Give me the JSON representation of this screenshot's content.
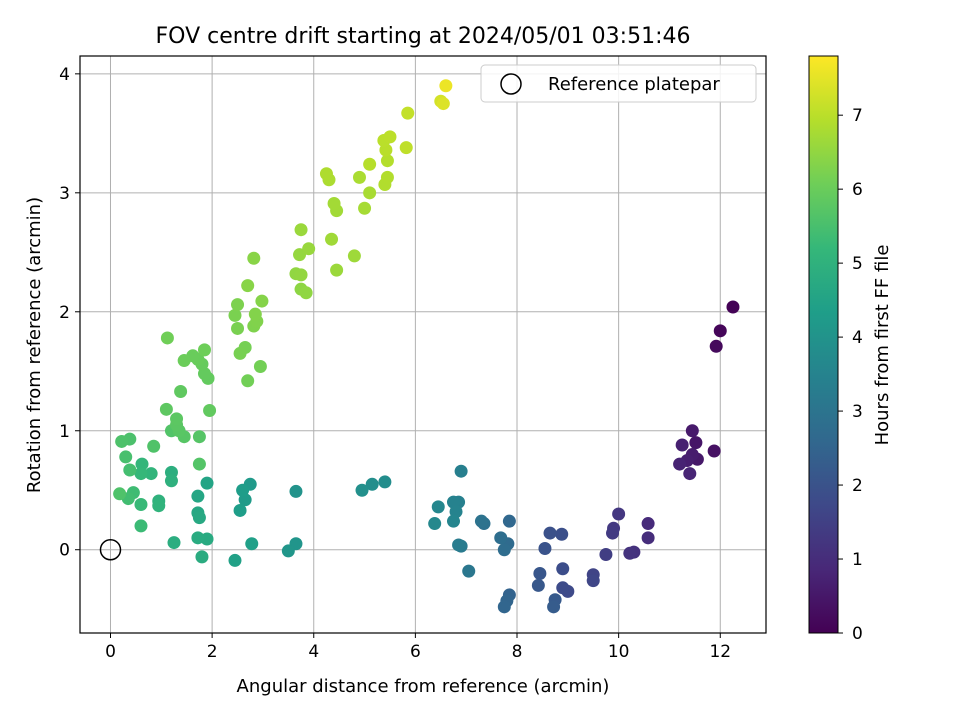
{
  "chart_data": {
    "type": "scatter",
    "title": "FOV centre drift starting at 2024/05/01 03:51:46",
    "xlabel": "Angular distance from reference (arcmin)",
    "ylabel": "Rotation from reference (arcmin)",
    "xlim": [
      -0.6,
      12.9
    ],
    "ylim": [
      -0.7,
      4.15
    ],
    "xticks": [
      0,
      2,
      4,
      6,
      8,
      10,
      12
    ],
    "xtick_labels": [
      "0",
      "2",
      "4",
      "6",
      "8",
      "10",
      "12"
    ],
    "yticks": [
      0,
      1,
      2,
      3,
      4
    ],
    "ytick_labels": [
      "0",
      "1",
      "2",
      "3",
      "4"
    ],
    "grid": true,
    "legend": {
      "placement": "top-right",
      "entries": [
        "Reference platepar"
      ]
    },
    "colorbar": {
      "label": "Hours from first FF file",
      "range": [
        0,
        7.8
      ],
      "ticks": [
        0,
        1,
        2,
        3,
        4,
        5,
        6,
        7
      ],
      "tick_labels": [
        "0",
        "1",
        "2",
        "3",
        "4",
        "5",
        "6",
        "7"
      ],
      "colormap": "viridis"
    },
    "reference_point": {
      "x": 0,
      "y": 0
    },
    "points": [
      {
        "x": 12.25,
        "y": 2.04,
        "c": 0.05
      },
      {
        "x": 12.0,
        "y": 1.84,
        "c": 0.12
      },
      {
        "x": 11.92,
        "y": 1.71,
        "c": 0.2
      },
      {
        "x": 11.88,
        "y": 0.83,
        "c": 0.35
      },
      {
        "x": 11.52,
        "y": 0.9,
        "c": 0.45
      },
      {
        "x": 11.55,
        "y": 0.76,
        "c": 0.5
      },
      {
        "x": 11.45,
        "y": 1.0,
        "c": 0.55
      },
      {
        "x": 11.45,
        "y": 0.8,
        "c": 0.6
      },
      {
        "x": 11.35,
        "y": 0.75,
        "c": 0.65
      },
      {
        "x": 11.25,
        "y": 0.88,
        "c": 0.7
      },
      {
        "x": 11.2,
        "y": 0.72,
        "c": 0.75
      },
      {
        "x": 11.4,
        "y": 0.64,
        "c": 0.8
      },
      {
        "x": 10.58,
        "y": 0.22,
        "c": 0.95
      },
      {
        "x": 10.58,
        "y": 0.1,
        "c": 1.0
      },
      {
        "x": 10.3,
        "y": -0.02,
        "c": 1.1
      },
      {
        "x": 10.22,
        "y": -0.03,
        "c": 1.15
      },
      {
        "x": 10.0,
        "y": 0.3,
        "c": 1.25
      },
      {
        "x": 9.9,
        "y": 0.18,
        "c": 1.3
      },
      {
        "x": 9.88,
        "y": 0.14,
        "c": 1.35
      },
      {
        "x": 9.75,
        "y": -0.04,
        "c": 1.45
      },
      {
        "x": 9.5,
        "y": -0.21,
        "c": 1.6
      },
      {
        "x": 9.5,
        "y": -0.26,
        "c": 1.65
      },
      {
        "x": 9.0,
        "y": -0.35,
        "c": 1.75
      },
      {
        "x": 8.9,
        "y": -0.32,
        "c": 1.8
      },
      {
        "x": 8.9,
        "y": -0.16,
        "c": 1.85
      },
      {
        "x": 8.88,
        "y": 0.13,
        "c": 1.9
      },
      {
        "x": 8.65,
        "y": 0.14,
        "c": 1.95
      },
      {
        "x": 8.55,
        "y": 0.01,
        "c": 2.0
      },
      {
        "x": 8.45,
        "y": -0.2,
        "c": 2.1
      },
      {
        "x": 8.42,
        "y": -0.3,
        "c": 2.15
      },
      {
        "x": 8.75,
        "y": -0.42,
        "c": 2.2
      },
      {
        "x": 8.72,
        "y": -0.48,
        "c": 2.25
      },
      {
        "x": 7.85,
        "y": -0.38,
        "c": 2.45
      },
      {
        "x": 7.8,
        "y": -0.43,
        "c": 2.5
      },
      {
        "x": 7.75,
        "y": -0.48,
        "c": 2.55
      },
      {
        "x": 7.85,
        "y": 0.24,
        "c": 2.6
      },
      {
        "x": 7.82,
        "y": 0.05,
        "c": 2.7
      },
      {
        "x": 7.75,
        "y": 0.0,
        "c": 2.75
      },
      {
        "x": 7.68,
        "y": 0.1,
        "c": 2.8
      },
      {
        "x": 7.35,
        "y": 0.22,
        "c": 2.9
      },
      {
        "x": 7.3,
        "y": 0.24,
        "c": 2.95
      },
      {
        "x": 7.05,
        "y": -0.18,
        "c": 3.1
      },
      {
        "x": 6.9,
        "y": 0.03,
        "c": 3.2
      },
      {
        "x": 6.85,
        "y": 0.04,
        "c": 3.25
      },
      {
        "x": 6.9,
        "y": 0.66,
        "c": 3.35
      },
      {
        "x": 6.85,
        "y": 0.4,
        "c": 3.4
      },
      {
        "x": 6.75,
        "y": 0.4,
        "c": 3.45
      },
      {
        "x": 6.8,
        "y": 0.32,
        "c": 3.5
      },
      {
        "x": 6.75,
        "y": 0.24,
        "c": 3.55
      },
      {
        "x": 6.45,
        "y": 0.36,
        "c": 3.6
      },
      {
        "x": 6.38,
        "y": 0.22,
        "c": 3.65
      },
      {
        "x": 5.4,
        "y": 0.57,
        "c": 3.8
      },
      {
        "x": 5.15,
        "y": 0.55,
        "c": 3.85
      },
      {
        "x": 4.95,
        "y": 0.5,
        "c": 3.9
      },
      {
        "x": 3.65,
        "y": 0.49,
        "c": 4.0
      },
      {
        "x": 3.65,
        "y": 0.05,
        "c": 4.05
      },
      {
        "x": 3.5,
        "y": -0.01,
        "c": 4.1
      },
      {
        "x": 2.75,
        "y": 0.55,
        "c": 4.2
      },
      {
        "x": 2.65,
        "y": 0.42,
        "c": 4.25
      },
      {
        "x": 2.6,
        "y": 0.5,
        "c": 4.3
      },
      {
        "x": 2.55,
        "y": 0.33,
        "c": 4.35
      },
      {
        "x": 2.78,
        "y": 0.05,
        "c": 4.4
      },
      {
        "x": 2.45,
        "y": -0.09,
        "c": 4.45
      },
      {
        "x": 1.9,
        "y": 0.56,
        "c": 4.55
      },
      {
        "x": 1.72,
        "y": 0.45,
        "c": 4.6
      },
      {
        "x": 1.72,
        "y": 0.31,
        "c": 4.65
      },
      {
        "x": 1.75,
        "y": 0.27,
        "c": 4.7
      },
      {
        "x": 1.9,
        "y": 0.09,
        "c": 4.75
      },
      {
        "x": 1.72,
        "y": 0.1,
        "c": 4.78
      },
      {
        "x": 1.8,
        "y": -0.06,
        "c": 4.8
      },
      {
        "x": 1.25,
        "y": 0.06,
        "c": 4.85
      },
      {
        "x": 1.2,
        "y": 0.65,
        "c": 4.9
      },
      {
        "x": 1.2,
        "y": 0.58,
        "c": 4.95
      },
      {
        "x": 0.95,
        "y": 0.41,
        "c": 5.0
      },
      {
        "x": 0.95,
        "y": 0.37,
        "c": 5.05
      },
      {
        "x": 0.8,
        "y": 0.64,
        "c": 5.1
      },
      {
        "x": 0.62,
        "y": 0.72,
        "c": 5.15
      },
      {
        "x": 0.6,
        "y": 0.64,
        "c": 5.2
      },
      {
        "x": 0.6,
        "y": 0.38,
        "c": 5.25
      },
      {
        "x": 0.6,
        "y": 0.2,
        "c": 5.3
      },
      {
        "x": 0.45,
        "y": 0.48,
        "c": 5.35
      },
      {
        "x": 0.35,
        "y": 0.43,
        "c": 5.4
      },
      {
        "x": 0.38,
        "y": 0.67,
        "c": 5.45
      },
      {
        "x": 0.3,
        "y": 0.78,
        "c": 5.5
      },
      {
        "x": 0.38,
        "y": 0.93,
        "c": 5.55
      },
      {
        "x": 0.22,
        "y": 0.91,
        "c": 5.58
      },
      {
        "x": 0.18,
        "y": 0.47,
        "c": 5.6
      },
      {
        "x": 0.85,
        "y": 0.87,
        "c": 5.62
      },
      {
        "x": 1.2,
        "y": 1.0,
        "c": 5.65
      },
      {
        "x": 1.75,
        "y": 0.72,
        "c": 5.68
      },
      {
        "x": 1.75,
        "y": 0.95,
        "c": 5.7
      },
      {
        "x": 1.45,
        "y": 0.95,
        "c": 5.72
      },
      {
        "x": 1.35,
        "y": 1.0,
        "c": 5.75
      },
      {
        "x": 1.3,
        "y": 1.05,
        "c": 5.78
      },
      {
        "x": 1.3,
        "y": 1.1,
        "c": 5.8
      },
      {
        "x": 1.1,
        "y": 1.18,
        "c": 5.82
      },
      {
        "x": 1.38,
        "y": 1.33,
        "c": 5.85
      },
      {
        "x": 1.95,
        "y": 1.17,
        "c": 5.88
      },
      {
        "x": 1.92,
        "y": 1.44,
        "c": 5.9
      },
      {
        "x": 1.85,
        "y": 1.48,
        "c": 5.92
      },
      {
        "x": 1.8,
        "y": 1.56,
        "c": 5.95
      },
      {
        "x": 1.72,
        "y": 1.6,
        "c": 5.98
      },
      {
        "x": 1.62,
        "y": 1.63,
        "c": 6.0
      },
      {
        "x": 1.45,
        "y": 1.59,
        "c": 6.02
      },
      {
        "x": 1.85,
        "y": 1.68,
        "c": 6.05
      },
      {
        "x": 1.12,
        "y": 1.78,
        "c": 6.08
      },
      {
        "x": 2.7,
        "y": 1.42,
        "c": 6.1
      },
      {
        "x": 2.95,
        "y": 1.54,
        "c": 6.12
      },
      {
        "x": 2.65,
        "y": 1.7,
        "c": 6.15
      },
      {
        "x": 2.55,
        "y": 1.65,
        "c": 6.18
      },
      {
        "x": 2.5,
        "y": 1.86,
        "c": 6.2
      },
      {
        "x": 2.45,
        "y": 1.97,
        "c": 6.22
      },
      {
        "x": 2.5,
        "y": 2.06,
        "c": 6.25
      },
      {
        "x": 2.82,
        "y": 1.88,
        "c": 6.28
      },
      {
        "x": 2.88,
        "y": 1.92,
        "c": 6.3
      },
      {
        "x": 2.85,
        "y": 1.98,
        "c": 6.32
      },
      {
        "x": 2.98,
        "y": 2.09,
        "c": 6.35
      },
      {
        "x": 2.7,
        "y": 2.22,
        "c": 6.38
      },
      {
        "x": 2.82,
        "y": 2.45,
        "c": 6.4
      },
      {
        "x": 3.75,
        "y": 2.19,
        "c": 6.45
      },
      {
        "x": 3.85,
        "y": 2.16,
        "c": 6.48
      },
      {
        "x": 3.65,
        "y": 2.32,
        "c": 6.5
      },
      {
        "x": 3.75,
        "y": 2.31,
        "c": 6.52
      },
      {
        "x": 3.72,
        "y": 2.48,
        "c": 6.55
      },
      {
        "x": 3.9,
        "y": 2.53,
        "c": 6.58
      },
      {
        "x": 3.75,
        "y": 2.69,
        "c": 6.6
      },
      {
        "x": 4.45,
        "y": 2.35,
        "c": 6.62
      },
      {
        "x": 4.8,
        "y": 2.47,
        "c": 6.65
      },
      {
        "x": 4.35,
        "y": 2.61,
        "c": 6.68
      },
      {
        "x": 4.45,
        "y": 2.85,
        "c": 6.7
      },
      {
        "x": 4.4,
        "y": 2.91,
        "c": 6.72
      },
      {
        "x": 5.0,
        "y": 2.87,
        "c": 6.75
      },
      {
        "x": 5.1,
        "y": 3.0,
        "c": 6.78
      },
      {
        "x": 4.9,
        "y": 3.13,
        "c": 6.8
      },
      {
        "x": 4.3,
        "y": 3.11,
        "c": 6.82
      },
      {
        "x": 4.25,
        "y": 3.16,
        "c": 6.85
      },
      {
        "x": 5.4,
        "y": 3.07,
        "c": 6.88
      },
      {
        "x": 5.45,
        "y": 3.13,
        "c": 6.9
      },
      {
        "x": 5.45,
        "y": 3.27,
        "c": 6.92
      },
      {
        "x": 5.1,
        "y": 3.24,
        "c": 6.95
      },
      {
        "x": 5.42,
        "y": 3.36,
        "c": 6.98
      },
      {
        "x": 5.38,
        "y": 3.44,
        "c": 7.0
      },
      {
        "x": 5.5,
        "y": 3.47,
        "c": 7.02
      },
      {
        "x": 5.82,
        "y": 3.38,
        "c": 7.05
      },
      {
        "x": 5.85,
        "y": 3.67,
        "c": 7.1
      },
      {
        "x": 6.5,
        "y": 3.77,
        "c": 7.3
      },
      {
        "x": 6.55,
        "y": 3.75,
        "c": 7.4
      },
      {
        "x": 6.6,
        "y": 3.9,
        "c": 7.6
      }
    ]
  }
}
